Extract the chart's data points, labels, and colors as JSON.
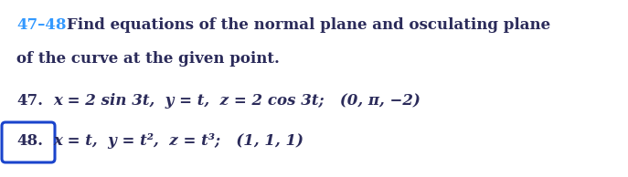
{
  "bg_color": "#ffffff",
  "header_color": "#3399ff",
  "text_color": "#2b2b5a",
  "header_text": "47–48",
  "header_sub": "Find equations of the normal plane and osculating plane",
  "line2": "of the curve at the given point.",
  "num47": "47.",
  "line47": "x = 2 sin 3t,  y = t,  z = 2 cos 3t;   (0, π, −2)",
  "num48": "48.",
  "line48": "x = t,  y = t²,  z = t³;   (1, 1, 1)",
  "figwidth": 6.87,
  "figheight": 1.94,
  "dpi": 100,
  "fontsize": 12,
  "box_color": "#1a44cc"
}
